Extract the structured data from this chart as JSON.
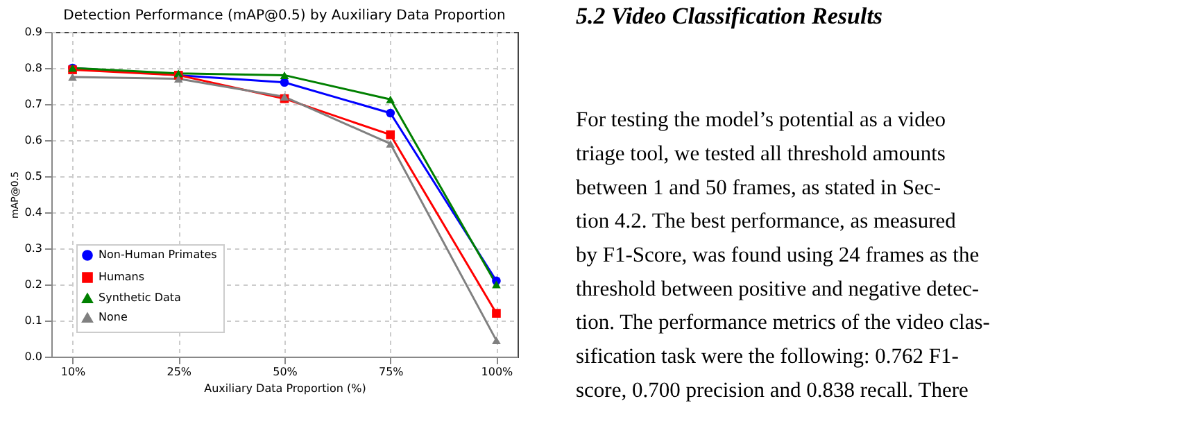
{
  "chart_data": [
    {
      "type": "line",
      "title": "Detection Performance (mAP@0.5) by Auxiliary Data Proportion",
      "xlabel": "Auxiliary Data Proportion (%)",
      "ylabel": "mAP@0.5",
      "categories": [
        "10%",
        "25%",
        "50%",
        "75%",
        "100%"
      ],
      "series": [
        {
          "name": "Non-Human Primates",
          "color": "#0000ff",
          "marker": "circle",
          "values": [
            0.8,
            0.78,
            0.76,
            0.675,
            0.21
          ]
        },
        {
          "name": "Humans",
          "color": "#ff0000",
          "marker": "square",
          "values": [
            0.795,
            0.78,
            0.715,
            0.615,
            0.12
          ]
        },
        {
          "name": "Synthetic Data",
          "color": "#008000",
          "marker": "triangle",
          "values": [
            0.8,
            0.785,
            0.78,
            0.713,
            0.2
          ]
        },
        {
          "name": "None",
          "color": "#808080",
          "marker": "triangle",
          "values": [
            0.775,
            0.77,
            0.72,
            0.59,
            0.045
          ]
        }
      ],
      "ylim": [
        0,
        0.9
      ],
      "yticks": [
        {
          "value": 0,
          "label": "0.0"
        },
        0.1,
        0.2,
        0.3,
        0.4,
        0.5,
        0.6,
        0.7,
        0.8,
        0.9
      ],
      "grid": true,
      "legend": "bottom left"
    },
    {
      "type": "other",
      "title": "5.2 Video Classification Results",
      "annotations": [
        "For testing the model’s potential as a video",
        "triage tool, we tested all threshold amounts",
        "between 1 and 50 frames, as stated in Sec-",
        "tion 4.2.  The best performance, as measured",
        "by F1-Score, was found using 24 frames as the",
        "threshold between positive and negative detec-",
        "tion. The performance metrics of the video clas-",
        "sification task were the following:  0.762 F1-",
        "score, 0.700 precision and 0.838 recall.  There"
      ]
    }
  ]
}
